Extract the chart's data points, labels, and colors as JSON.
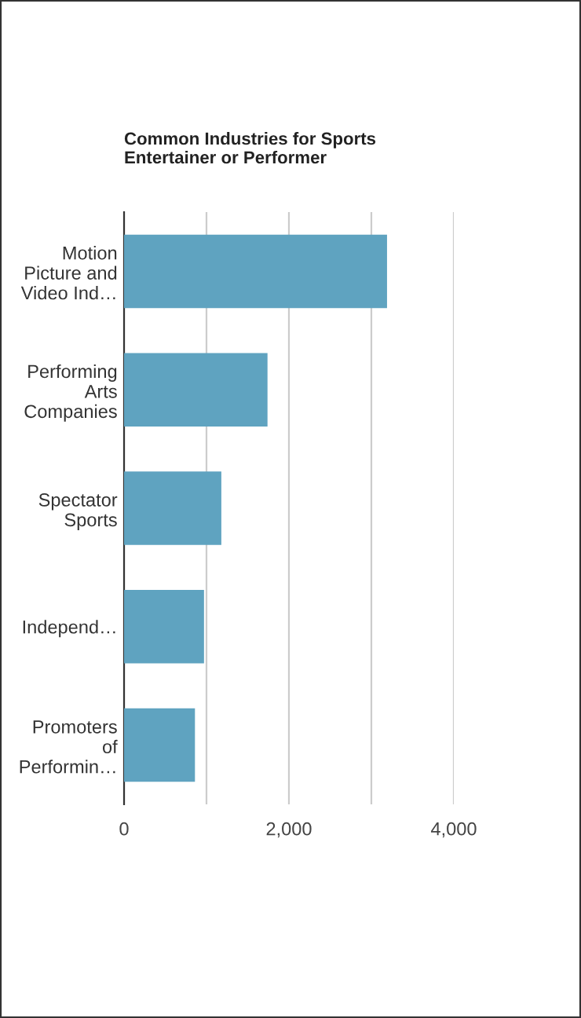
{
  "chart_data": {
    "type": "bar",
    "orientation": "horizontal",
    "title": "Common Industries for Sports Entertainer or Performer",
    "categories": [
      "Motion Picture and Video Ind…",
      "Performing Arts Companies",
      "Spectator Sports",
      "Independ…",
      "Promoters of Performin…"
    ],
    "values": [
      3190,
      1740,
      1180,
      970,
      860
    ],
    "color": "#5fa3c0",
    "xlim": [
      0,
      4000
    ],
    "xticks": [
      0,
      {
        "value": 1000,
        "label": null
      },
      {
        "value": 2000,
        "label": "2,000"
      },
      {
        "value": 3000,
        "label": null
      },
      {
        "value": 4000,
        "label": "4,000"
      }
    ],
    "grid": "x",
    "legend": false
  }
}
